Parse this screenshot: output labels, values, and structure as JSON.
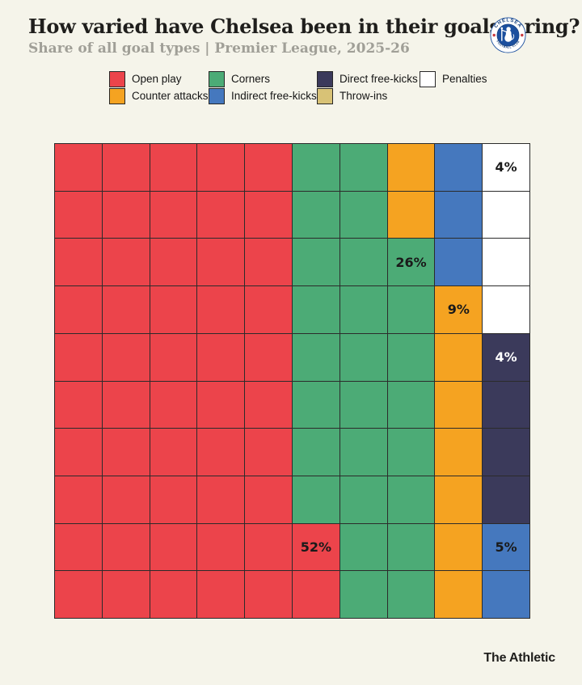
{
  "header": {
    "title": "How varied have Chelsea been in their goalscoring?",
    "subtitle": "Share of all goal types | Premier League, 2025-26"
  },
  "badge": {
    "ring_top": "CHELSEA",
    "ring_bottom": "FOOTBALL CLUB"
  },
  "footer": {
    "brand": "The Athletic"
  },
  "colors": {
    "background": "#F5F4EA",
    "grid_line": "#2B2B2B",
    "title_text": "#1F1E1C",
    "subtitle_text": "#A09F97",
    "badge_blue": "#1B4F9E"
  },
  "chart_data": {
    "type": "heatmap",
    "variant": "waffle-10x10",
    "title": "How varied have Chelsea been in their goalscoring?",
    "subtitle": "Share of all goal types | Premier League, 2025-26",
    "unit": "percent of all Chelsea goals",
    "grid": "10x10, each square = 1%",
    "categories": [
      {
        "key": "O",
        "label": "Open play",
        "value": 52,
        "color": "#EC444B"
      },
      {
        "key": "C",
        "label": "Corners",
        "value": 26,
        "color": "#4CAB76"
      },
      {
        "key": "A",
        "label": "Counter attacks",
        "value": 9,
        "color": "#F5A321"
      },
      {
        "key": "I",
        "label": "Indirect free-kicks",
        "value": 5,
        "color": "#4578BE"
      },
      {
        "key": "D",
        "label": "Direct free-kicks",
        "value": 4,
        "color": "#3B3A5B"
      },
      {
        "key": "P",
        "label": "Penalties",
        "value": 4,
        "color": "#FFFFFF"
      },
      {
        "key": "T",
        "label": "Throw-ins",
        "value": 0,
        "color": "#D8C276"
      }
    ],
    "legend_order": [
      "Open play",
      "Corners",
      "Direct free-kicks",
      "Penalties",
      "Counter attacks",
      "Indirect free-kicks",
      "Throw-ins"
    ],
    "grid_rows": [
      "OOOOOCCAIP",
      "OOOOOCCAIP",
      "OOOOOCCCIP",
      "OOOOOCCCAP",
      "OOOOOCCCAD",
      "OOOOOCCCAD",
      "OOOOOCCCAD",
      "OOOOOCCCAD",
      "OOOOOOCCAI",
      "OOOOOOCCAI"
    ],
    "cell_labels": [
      {
        "row": 0,
        "col": 9,
        "text": "4%",
        "color": "#1A1A1A"
      },
      {
        "row": 2,
        "col": 7,
        "text": "26%",
        "color": "#1A1A1A"
      },
      {
        "row": 3,
        "col": 8,
        "text": "9%",
        "color": "#1A1A1A"
      },
      {
        "row": 4,
        "col": 9,
        "text": "4%",
        "color": "#FFFFFF"
      },
      {
        "row": 8,
        "col": 5,
        "text": "52%",
        "color": "#1A1A1A"
      },
      {
        "row": 8,
        "col": 9,
        "text": "5%",
        "color": "#1A1A1A"
      }
    ]
  }
}
